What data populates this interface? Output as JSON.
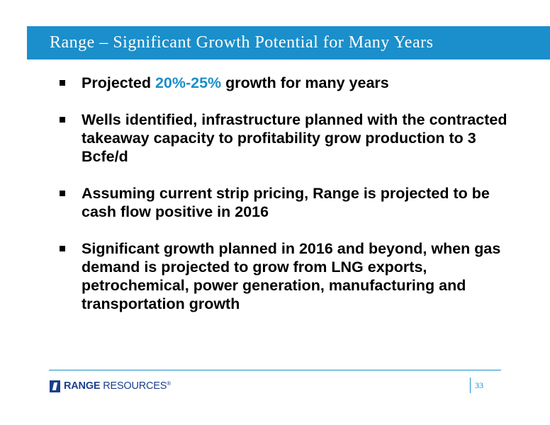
{
  "slide": {
    "title": "Range – Significant Growth Potential for Many Years",
    "bullets": [
      {
        "prefix": "Projected ",
        "highlight": "20%-25%",
        "suffix": " growth for many years"
      },
      {
        "text": "Wells identified, infrastructure planned with the contracted takeaway capacity to profitability grow production to 3 Bcfe/d"
      },
      {
        "text": "Assuming current strip pricing, Range is projected to be cash flow positive in 2016"
      },
      {
        "text": "Significant growth planned in 2016 and beyond, when gas demand is projected to grow from LNG exports, petrochemical, power generation, manufacturing and transportation growth"
      }
    ]
  },
  "footer": {
    "logo_strong": "RANGE",
    "logo_light": " RESOURCES",
    "logo_registered": "®",
    "page_number": "33"
  },
  "colors": {
    "accent": "#1a8fcb",
    "brand_navy": "#1b3f8b",
    "text": "#000000",
    "background": "#ffffff"
  }
}
